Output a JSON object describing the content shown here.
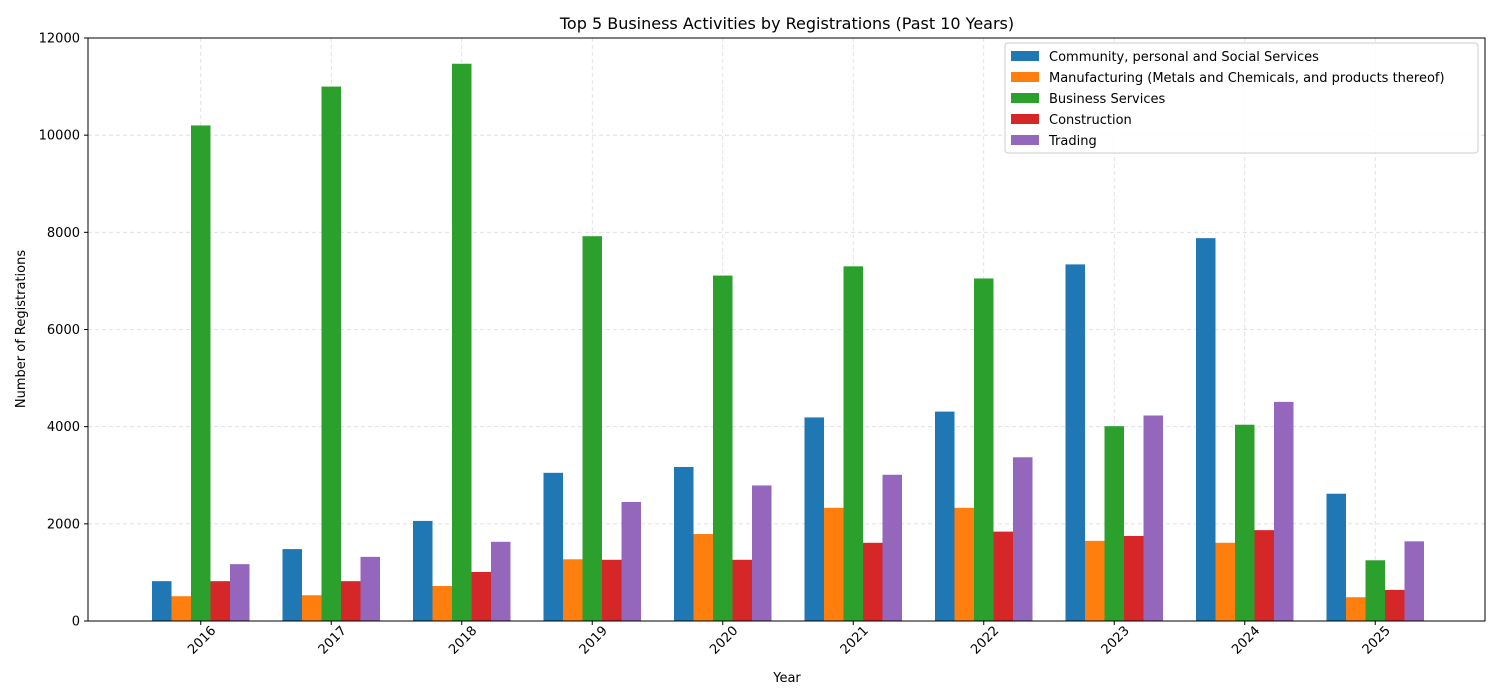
{
  "chart_data": {
    "type": "bar",
    "title": "Top 5 Business Activities by Registrations (Past 10 Years)",
    "xlabel": "Year",
    "ylabel": "Number of Registrations",
    "ylim": [
      0,
      12000
    ],
    "yticks": [
      "0",
      "2000",
      "4000",
      "6000",
      "8000",
      "10000",
      "12000"
    ],
    "grid": true,
    "legend_position": "top-right",
    "categories": [
      "2016",
      "2017",
      "2018",
      "2019",
      "2020",
      "2021",
      "2022",
      "2023",
      "2024",
      "2025"
    ],
    "series": [
      {
        "name": "Community, personal and Social Services",
        "color": "#1f77b4",
        "values": [
          820,
          1480,
          2060,
          3050,
          3170,
          4190,
          4310,
          7340,
          7880,
          2620
        ]
      },
      {
        "name": "Manufacturing (Metals and Chemicals, and products thereof)",
        "color": "#ff7f0e",
        "values": [
          510,
          530,
          720,
          1270,
          1790,
          2330,
          2330,
          1650,
          1610,
          490
        ]
      },
      {
        "name": "Business Services",
        "color": "#2ca02c",
        "values": [
          10200,
          11000,
          11470,
          7920,
          7110,
          7300,
          7050,
          4010,
          4040,
          1250
        ]
      },
      {
        "name": "Construction",
        "color": "#d62728",
        "values": [
          820,
          820,
          1010,
          1260,
          1260,
          1610,
          1840,
          1750,
          1870,
          640
        ]
      },
      {
        "name": "Trading",
        "color": "#9467bd",
        "values": [
          1170,
          1320,
          1630,
          2450,
          2790,
          3010,
          3370,
          4230,
          4510,
          1640
        ]
      }
    ]
  }
}
